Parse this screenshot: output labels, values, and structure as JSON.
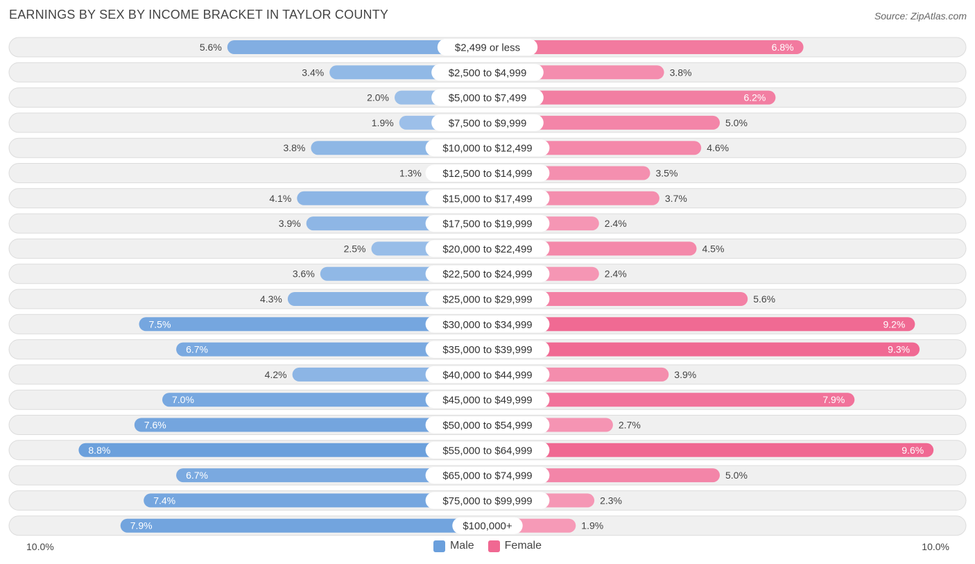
{
  "title": "EARNINGS BY SEX BY INCOME BRACKET IN TAYLOR COUNTY",
  "source": "Source: ZipAtlas.com",
  "axis": {
    "left_label": "10.0%",
    "right_label": "10.0%"
  },
  "legend": {
    "male": "Male",
    "female": "Female"
  },
  "colors": {
    "male_light": "#a9c8ec",
    "male_dark": "#6a9fdc",
    "female_light": "#f7a6c0",
    "female_dark": "#f06892",
    "row_bg": "#f0f0f0",
    "row_border": "#dcdcdc"
  },
  "chart_data": {
    "type": "bar",
    "orientation": "horizontal-diverging",
    "title": "EARNINGS BY SEX BY INCOME BRACKET IN TAYLOR COUNTY",
    "xlim": [
      -10,
      10
    ],
    "unit": "%",
    "categories": [
      "$2,499 or less",
      "$2,500 to $4,999",
      "$5,000 to $7,499",
      "$7,500 to $9,999",
      "$10,000 to $12,499",
      "$12,500 to $14,999",
      "$15,000 to $17,499",
      "$17,500 to $19,999",
      "$20,000 to $22,499",
      "$22,500 to $24,999",
      "$25,000 to $29,999",
      "$30,000 to $34,999",
      "$35,000 to $39,999",
      "$40,000 to $44,999",
      "$45,000 to $49,999",
      "$50,000 to $54,999",
      "$55,000 to $64,999",
      "$65,000 to $74,999",
      "$75,000 to $99,999",
      "$100,000+"
    ],
    "series": [
      {
        "name": "Male",
        "values": [
          5.6,
          3.4,
          2.0,
          1.9,
          3.8,
          1.3,
          4.1,
          3.9,
          2.5,
          3.6,
          4.3,
          7.5,
          6.7,
          4.2,
          7.0,
          7.6,
          8.8,
          6.7,
          7.4,
          7.9
        ],
        "labels": [
          "5.6%",
          "3.4%",
          "2.0%",
          "1.9%",
          "3.8%",
          "1.3%",
          "4.1%",
          "3.9%",
          "2.5%",
          "3.6%",
          "4.3%",
          "7.5%",
          "6.7%",
          "4.2%",
          "7.0%",
          "7.6%",
          "8.8%",
          "6.7%",
          "7.4%",
          "7.9%"
        ]
      },
      {
        "name": "Female",
        "values": [
          6.8,
          3.8,
          6.2,
          5.0,
          4.6,
          3.5,
          3.7,
          2.4,
          4.5,
          2.4,
          5.6,
          9.2,
          9.3,
          3.9,
          7.9,
          2.7,
          9.6,
          5.0,
          2.3,
          1.9
        ],
        "labels": [
          "6.8%",
          "3.8%",
          "6.2%",
          "5.0%",
          "4.6%",
          "3.5%",
          "3.7%",
          "2.4%",
          "4.5%",
          "2.4%",
          "5.6%",
          "9.2%",
          "9.3%",
          "3.9%",
          "7.9%",
          "2.7%",
          "9.6%",
          "5.0%",
          "2.3%",
          "1.9%"
        ]
      }
    ]
  }
}
